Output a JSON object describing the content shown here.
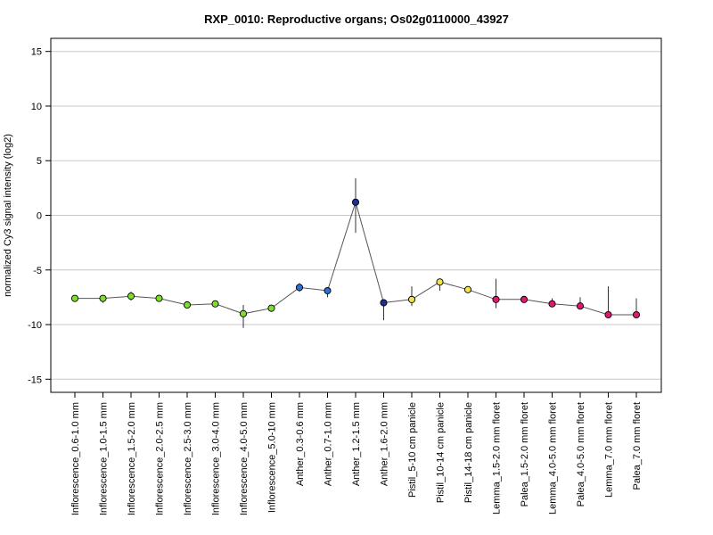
{
  "chart_data": {
    "type": "line",
    "title": "RXP_0010: Reproductive organs; Os02g0110000_43927",
    "xlabel": "",
    "ylabel": "normalized Cy3 signal intensity (log2)",
    "ylim": [
      -16.2,
      16.2
    ],
    "yticks": [
      -15,
      -10,
      -5,
      0,
      5,
      10,
      15
    ],
    "grid": true,
    "categories": [
      "Inflorescence_0.6-1.0 mm",
      "Inflorescence_1.0-1.5 mm",
      "Inflorescence_1.5-2.0 mm",
      "Inflorescence_2.0-2.5 mm",
      "Inflorescence_2.5-3.0 mm",
      "Inflorescence_3.0-4.0 mm",
      "Inflorescence_4.0-5.0 mm",
      "Inflorescence_5.0-10 mm",
      "Anther_0.3-0.6 mm",
      "Anther_0.7-1.0 mm",
      "Anther_1.2-1.5 mm",
      "Anther_1.6-2.0 mm",
      "Pistil_5-10 cm panicle",
      "Pistil_10-14 cm panicle",
      "Pistil_14-18 cm panicle",
      "Lemma_1.5-2.0 mm floret",
      "Palea_1.5-2.0 mm floret",
      "Lemma_4.0-5.0 mm floret",
      "Palea_4.0-5.0 mm floret",
      "Lemma_7.0 mm floret",
      "Palea_7.0 mm floret"
    ],
    "values": [
      -7.6,
      -7.6,
      -7.4,
      -7.6,
      -8.2,
      -8.1,
      -9.0,
      -8.5,
      -6.6,
      -6.9,
      1.2,
      -8.0,
      -7.7,
      -6.1,
      -6.8,
      -7.7,
      -7.7,
      -8.1,
      -8.3,
      -9.1,
      -9.1
    ],
    "error_low": [
      -7.7,
      -8.0,
      -7.8,
      -7.7,
      -8.4,
      -8.3,
      -10.3,
      -8.7,
      -7.0,
      -7.5,
      -1.6,
      -9.6,
      -8.3,
      -6.9,
      -7.0,
      -8.5,
      -8.0,
      -8.4,
      -8.6,
      -9.3,
      -9.3
    ],
    "error_high": [
      -7.5,
      -7.3,
      -7.0,
      -7.5,
      -8.0,
      -7.9,
      -8.2,
      -8.3,
      -6.2,
      -6.7,
      3.4,
      -7.8,
      -6.5,
      -5.8,
      -6.6,
      -5.8,
      -7.4,
      -7.6,
      -7.5,
      -6.5,
      -7.6
    ],
    "point_colors": [
      "#7ddf2a",
      "#7ddf2a",
      "#7ddf2a",
      "#7ddf2a",
      "#7ddf2a",
      "#7ddf2a",
      "#7ddf2a",
      "#7ddf2a",
      "#2c6fd6",
      "#2c6fd6",
      "#1f2f9a",
      "#1f2f9a",
      "#f3e34a",
      "#f3e34a",
      "#f3e34a",
      "#e0186e",
      "#e0186e",
      "#e0186e",
      "#e0186e",
      "#e0186e",
      "#e0186e"
    ],
    "line_color": "#555555",
    "grid_color": "#c8c8c8"
  }
}
